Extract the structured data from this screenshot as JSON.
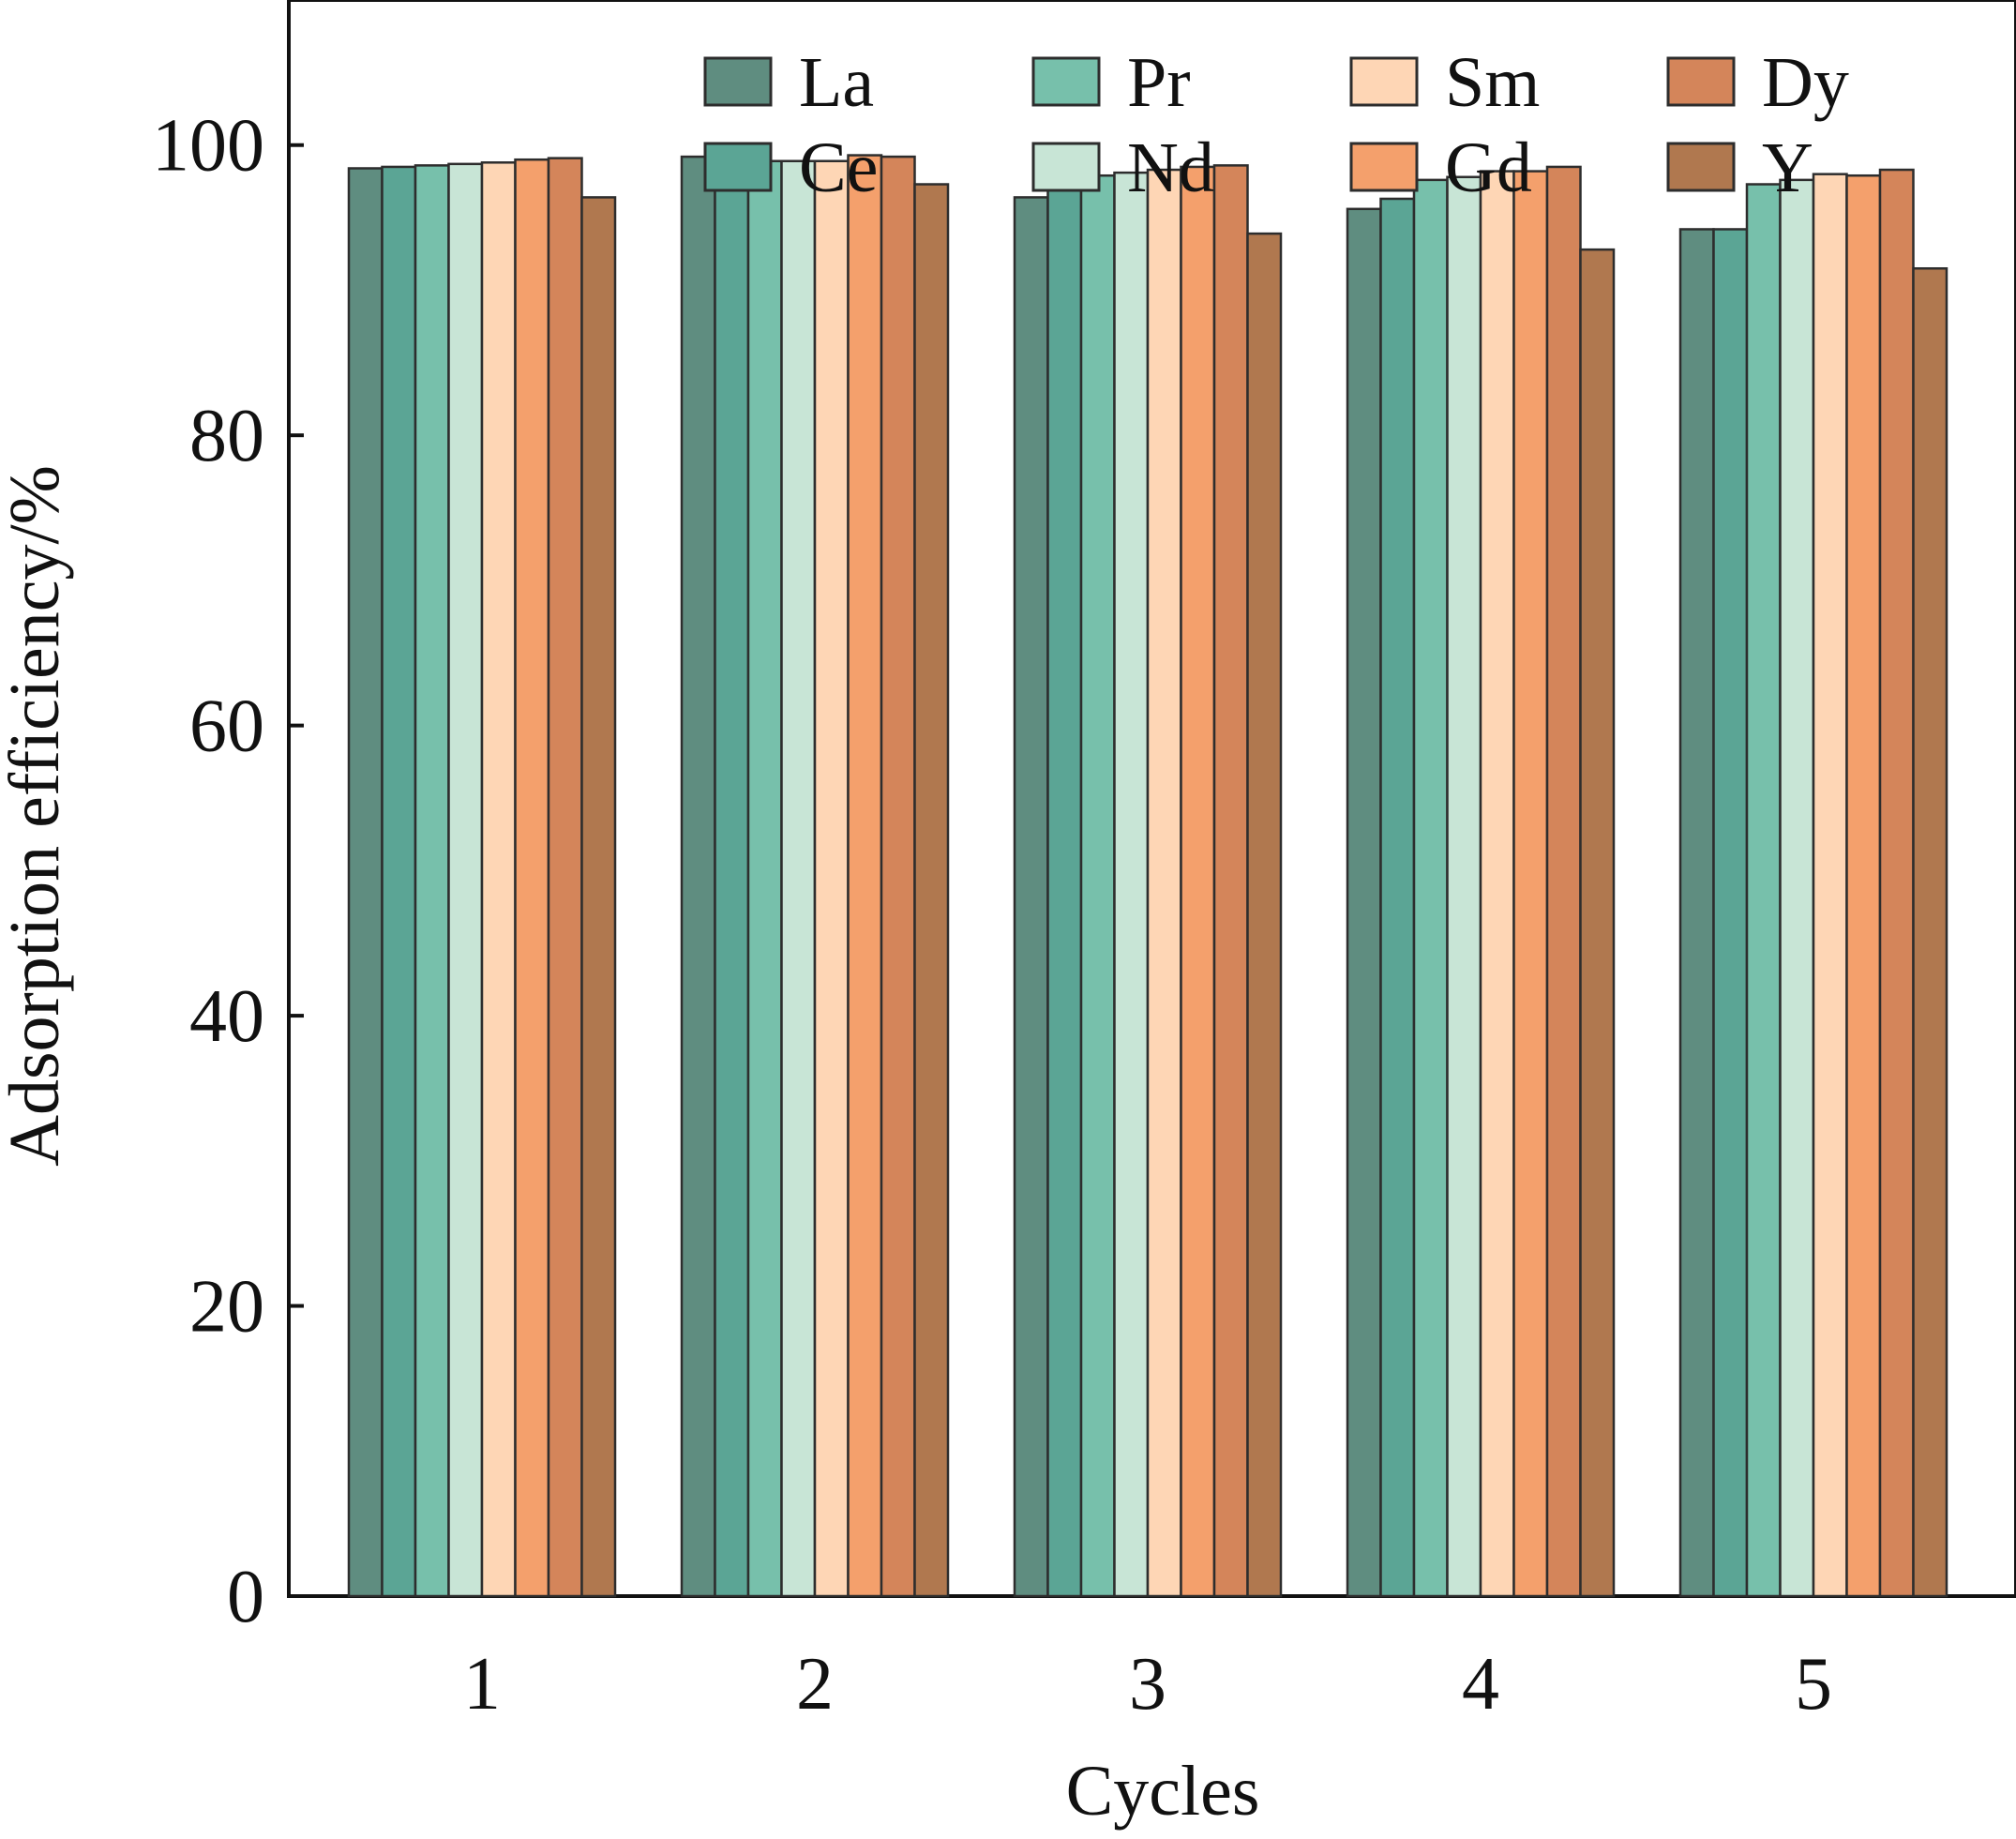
{
  "chart_data": {
    "type": "bar",
    "title": "",
    "xlabel": "Cycles",
    "ylabel": "Adsorption efficiency/%",
    "ylim": [
      0,
      110
    ],
    "yticks": [
      0,
      20,
      40,
      60,
      80,
      100
    ],
    "categories": [
      "1",
      "2",
      "3",
      "4",
      "5"
    ],
    "legend_position": "top",
    "series": [
      {
        "name": "La",
        "color": "#5f8d80",
        "values": [
          98.4,
          99.2,
          96.4,
          95.6,
          94.2
        ]
      },
      {
        "name": "Ce",
        "color": "#5ba595",
        "values": [
          98.5,
          99.1,
          96.9,
          96.3,
          94.2
        ]
      },
      {
        "name": "Pr",
        "color": "#77c0ab",
        "values": [
          98.6,
          98.9,
          97.9,
          97.6,
          97.3
        ]
      },
      {
        "name": "Nd",
        "color": "#c8e5d6",
        "values": [
          98.7,
          98.9,
          98.1,
          97.8,
          97.6
        ]
      },
      {
        "name": "Sm",
        "color": "#fed6b5",
        "values": [
          98.8,
          98.9,
          98.3,
          98.2,
          98.0
        ]
      },
      {
        "name": "Gd",
        "color": "#f4a06c",
        "values": [
          99.0,
          99.3,
          98.5,
          98.2,
          97.9
        ]
      },
      {
        "name": "Dy",
        "color": "#d4855a",
        "values": [
          99.1,
          99.2,
          98.6,
          98.5,
          98.3
        ]
      },
      {
        "name": "Y",
        "color": "#b0784f",
        "values": [
          96.4,
          97.3,
          93.9,
          92.8,
          91.5
        ]
      }
    ]
  }
}
